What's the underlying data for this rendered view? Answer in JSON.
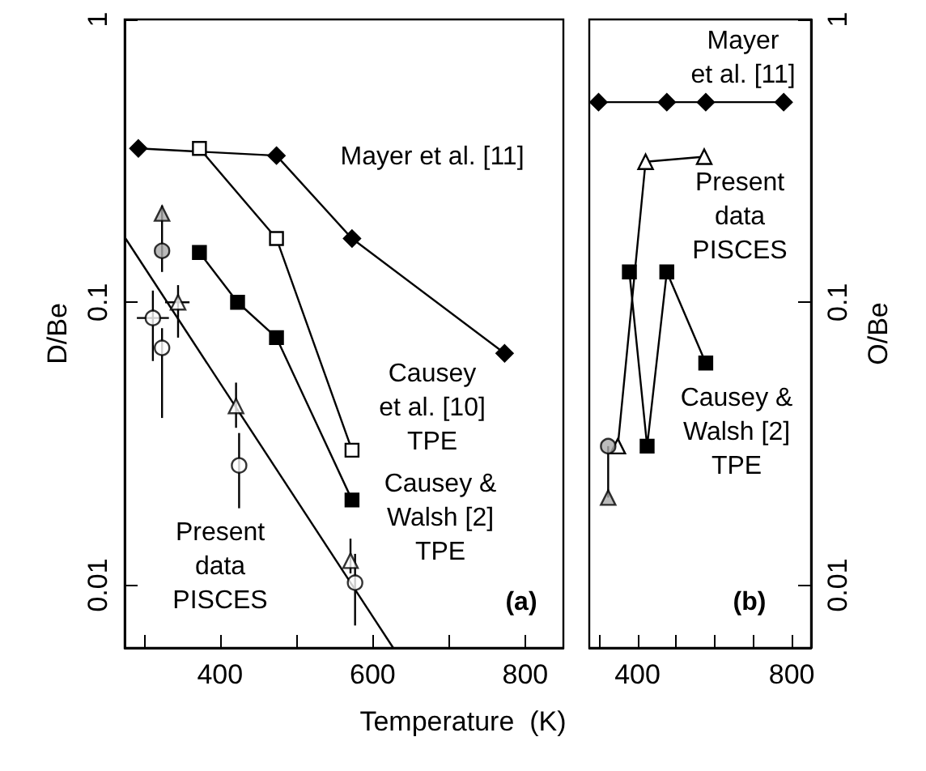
{
  "chart_data": [
    {
      "type": "line",
      "xlabel": "Temperature  (K)",
      "ylabel": "D/Be",
      "log": "y",
      "xlim": [
        275,
        850
      ],
      "xticks": [
        {
          "value": 300,
          "label": null
        },
        400,
        {
          "value": 500,
          "label": null
        },
        600,
        {
          "value": 700,
          "label": null
        },
        800
      ],
      "ylim": [
        0.006,
        1
      ],
      "yticks": [
        0.01,
        0.1,
        1
      ],
      "annotations": [
        "Present\ndata\nPISCES",
        "(a)"
      ],
      "series": [
        {
          "name": "Mayer et al. [11]",
          "color": "#000000",
          "marker": "diamond",
          "x": [
            293,
            474,
            573,
            773
          ],
          "values": [
            0.35,
            0.33,
            0.168,
            0.066
          ]
        },
        {
          "name": "Causey\net al. [10]\nTPE",
          "color": "#ffffff",
          "marker": "square",
          "x": [
            373,
            474,
            573
          ],
          "values": [
            0.35,
            0.168,
            0.03
          ]
        },
        {
          "name": "Causey &\nWalsh [2]\nTPE",
          "color": "#000000",
          "marker": "square",
          "x": [
            373,
            423,
            474,
            573
          ],
          "values": [
            0.15,
            0.1,
            0.075,
            0.02
          ]
        },
        {
          "type": "line",
          "color": "#000000",
          "marker": "none",
          "x": [
            275,
            627
          ],
          "values": [
            0.17,
            0.006
          ]
        },
        {
          "type": "scatter",
          "color": "#aaaaaa",
          "marker": "triangle",
          "x": [
            324
          ],
          "values": [
            0.206
          ]
        },
        {
          "type": "scatter",
          "color": "#aaaaaa",
          "marker": "circle",
          "x": [
            324
          ],
          "values": [
            0.152
          ],
          "errors": [
            [
              0.128,
              0.22
            ]
          ]
        },
        {
          "type": "scatter",
          "color": "#ffffff",
          "marker": "circle",
          "x": [
            312,
            425,
            577
          ],
          "values": [
            0.088,
            0.0265,
            0.0102
          ],
          "errors": [
            [
              0.062,
              0.11
            ],
            [
              0.0187,
              0.0345
            ],
            [
              0.0072,
              0.0129
            ]
          ],
          "xerrors": [
            [
              291,
              333
            ],
            null,
            null
          ]
        },
        {
          "type": "scatter",
          "color": "#ffffff",
          "marker": "triangle",
          "x": [
            345,
            421,
            571
          ],
          "values": [
            0.1,
            0.043,
            0.0122
          ],
          "errors": [
            [
              0.075,
              0.115
            ],
            [
              0.036,
              0.052
            ],
            [
              0.011,
              0.0146
            ]
          ],
          "xerrors": [
            [
              328,
              360
            ],
            null,
            null
          ]
        },
        {
          "type": "scatter",
          "color": "#ffffff",
          "marker": "circle",
          "x": [
            324
          ],
          "values": [
            0.069
          ],
          "errors": [
            [
              0.039,
              0.081
            ]
          ]
        }
      ]
    },
    {
      "type": "line",
      "y2label": "O/Be",
      "log": "y2",
      "xlim": [
        275,
        850
      ],
      "xticks": [
        {
          "value": 300,
          "label": null
        },
        400,
        {
          "value": 500,
          "label": null
        },
        {
          "value": 600,
          "label": null
        },
        {
          "value": 700,
          "label": null
        },
        800
      ],
      "y2lim": [
        0.006,
        1
      ],
      "y2ticks": [
        0.01,
        0.1,
        1
      ],
      "annotations": [
        "(b)"
      ],
      "series": [
        {
          "name": "Mayer\net al. [11]",
          "axis": "y2",
          "color": "#000000",
          "marker": "diamond",
          "x": [
            299,
            476,
            577,
            779
          ],
          "values": [
            0.51,
            0.51,
            0.51,
            0.51
          ]
        },
        {
          "name": "Present\ndata\nPISCES",
          "axis": "y2",
          "color": "#ffffff",
          "marker": "triangle",
          "x": [
            349,
            421,
            573
          ],
          "values": [
            0.031,
            0.314,
            0.327
          ]
        },
        {
          "name": "Causey &\nWalsh [2]\nTPE",
          "axis": "y2",
          "color": "#000000",
          "marker": "square",
          "x": [
            379,
            425,
            476,
            577
          ],
          "values": [
            0.128,
            0.031,
            0.128,
            0.061
          ]
        },
        {
          "type": "scatter",
          "axis": "y2",
          "color": "#aaaaaa",
          "marker": "circle",
          "x": [
            324
          ],
          "values": [
            0.031
          ],
          "errors": [
            [
              0.0204,
              0.031
            ]
          ]
        },
        {
          "type": "scatter",
          "axis": "y2",
          "color": "#aaaaaa",
          "marker": "triangle",
          "x": [
            324
          ],
          "values": [
            0.0204
          ]
        }
      ]
    }
  ]
}
